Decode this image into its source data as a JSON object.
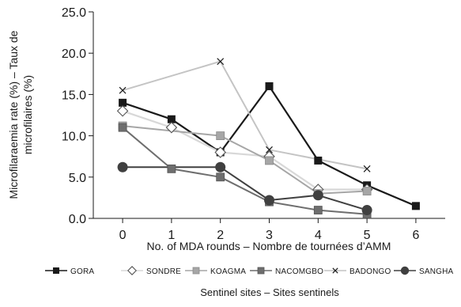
{
  "chart_data": {
    "type": "line",
    "xlabel": "No. of MDA rounds – Nombre de tournées d’AMM",
    "ylabel_lines": [
      "Microfilaraemia rate (%) – Taux de",
      "microfilaires (%)"
    ],
    "x_ticks": [
      "0",
      "1",
      "2",
      "3",
      "4",
      "5",
      "6"
    ],
    "y_ticks": [
      "0.0",
      "5.0",
      "10.0",
      "15.0",
      "20.0",
      "25.0"
    ],
    "xlim": [
      -0.6,
      6.6
    ],
    "ylim": [
      0,
      25
    ],
    "legend_title": "Sentinel sites – Sites sentinels",
    "legend_position": "bottom",
    "series": [
      {
        "name": "GORA",
        "color": "#1a1a1a",
        "marker": "square-filled",
        "x": [
          0,
          1,
          2,
          3,
          4,
          5,
          6
        ],
        "y": [
          14,
          12,
          8,
          16,
          7,
          4,
          1.5
        ]
      },
      {
        "name": "SONDRE",
        "color": "#d8d8d8",
        "marker": "diamond-open",
        "x": [
          0,
          1,
          2,
          3,
          4,
          5
        ],
        "y": [
          13,
          11,
          8,
          7.5,
          3.5,
          3.5
        ]
      },
      {
        "name": "KOAGMA",
        "color": "#a6a6a6",
        "marker": "square-gray",
        "x": [
          0,
          2,
          3,
          4,
          5
        ],
        "y": [
          11.2,
          10,
          7,
          3,
          3.3
        ]
      },
      {
        "name": "NACOMGBO",
        "color": "#6e6e6e",
        "marker": "square-dark",
        "x": [
          0,
          1,
          2,
          3,
          4,
          5
        ],
        "y": [
          11,
          6,
          5,
          2,
          1,
          0.5
        ]
      },
      {
        "name": "BADONGO",
        "color": "#c4c4c4",
        "marker": "x",
        "x": [
          0,
          2,
          3,
          5
        ],
        "y": [
          15.5,
          19,
          8.3,
          6
        ]
      },
      {
        "name": "SANGHA",
        "color": "#404040",
        "marker": "circle",
        "x": [
          0,
          2,
          3,
          4,
          5
        ],
        "y": [
          6.2,
          6.2,
          2.2,
          2.8,
          1
        ]
      }
    ]
  }
}
